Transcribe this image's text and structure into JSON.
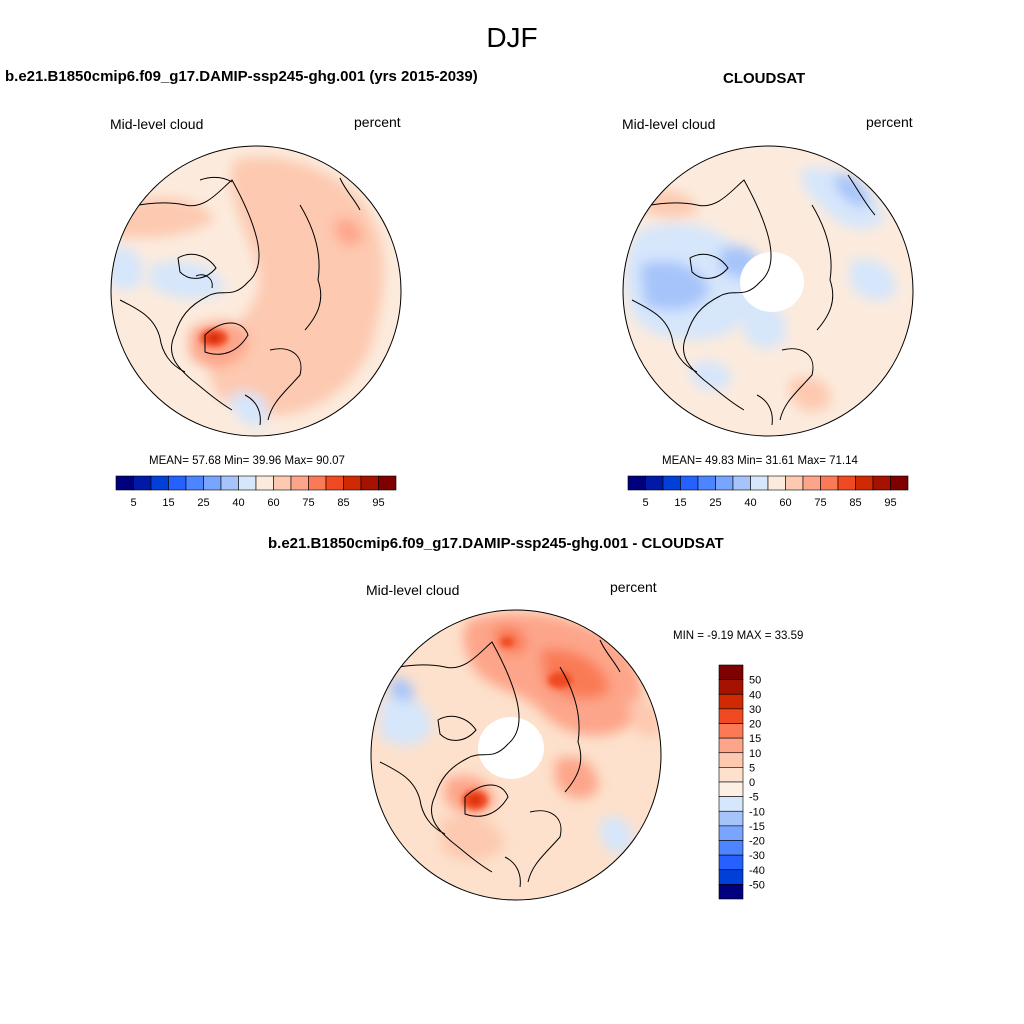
{
  "figure_title": "DJF",
  "panels": [
    {
      "title": "b.e21.B1850cmip6.f09_g17.DAMIP-ssp245-ghg.001 (yrs 2015-2039)",
      "left_label": "Mid-level cloud",
      "right_label": "percent",
      "stats": "MEAN=  57.68  Min=  39.96  Max=  90.07"
    },
    {
      "title": "CLOUDSAT",
      "left_label": "Mid-level cloud",
      "right_label": "percent",
      "stats": "MEAN=  49.83  Min=  31.61  Max=  71.14"
    },
    {
      "title": "b.e21.B1850cmip6.f09_g17.DAMIP-ssp245-ghg.001 - CLOUDSAT",
      "left_label": "Mid-level cloud",
      "right_label": "percent",
      "stats": "MIN =  -9.19 MAX =  33.59"
    }
  ],
  "chart_data": [
    {
      "type": "heatmap",
      "projection": "north-polar-stereographic",
      "variable": "Mid-level cloud",
      "units": "percent",
      "mean": 57.68,
      "min": 39.96,
      "max": 90.07,
      "colorbar": {
        "orientation": "horizontal",
        "levels": [
          5,
          10,
          15,
          20,
          25,
          30,
          40,
          50,
          60,
          70,
          75,
          80,
          85,
          90,
          95
        ],
        "tick_labels": [
          "5",
          "15",
          "25",
          "40",
          "60",
          "75",
          "85",
          "95"
        ],
        "colors": [
          "#00007f",
          "#0019a6",
          "#0040d9",
          "#2660ff",
          "#4c85ff",
          "#7aa5ff",
          "#a6c4fa",
          "#d6e6fb",
          "#fcebdd",
          "#fdc9b0",
          "#fda58a",
          "#fa7a55",
          "#f04a23",
          "#d02a05",
          "#a51200",
          "#7f0000"
        ]
      }
    },
    {
      "type": "heatmap",
      "projection": "north-polar-stereographic",
      "variable": "Mid-level cloud",
      "units": "percent",
      "mean": 49.83,
      "min": 31.61,
      "max": 71.14,
      "missing_pole": true,
      "colorbar": {
        "orientation": "horizontal",
        "levels": [
          5,
          10,
          15,
          20,
          25,
          30,
          40,
          50,
          60,
          70,
          75,
          80,
          85,
          90,
          95
        ],
        "tick_labels": [
          "5",
          "15",
          "25",
          "40",
          "60",
          "75",
          "85",
          "95"
        ],
        "colors": [
          "#00007f",
          "#0019a6",
          "#0040d9",
          "#2660ff",
          "#4c85ff",
          "#7aa5ff",
          "#a6c4fa",
          "#d6e6fb",
          "#fcebdd",
          "#fdc9b0",
          "#fda58a",
          "#fa7a55",
          "#f04a23",
          "#d02a05",
          "#a51200",
          "#7f0000"
        ]
      }
    },
    {
      "type": "heatmap",
      "projection": "north-polar-stereographic",
      "variable": "Mid-level cloud",
      "units": "percent",
      "min": -9.19,
      "max": 33.59,
      "missing_pole": true,
      "colorbar": {
        "orientation": "vertical",
        "tick_labels": [
          "50",
          "40",
          "30",
          "20",
          "15",
          "10",
          "5",
          "0",
          "-5",
          "-10",
          "-15",
          "-20",
          "-30",
          "-40",
          "-50"
        ],
        "colors": [
          "#7f0000",
          "#a51200",
          "#d02a05",
          "#f04a23",
          "#fa7a55",
          "#fda58a",
          "#fdc9b0",
          "#fde1cc",
          "#fcf0e4",
          "#d6e6fb",
          "#a6c4fa",
          "#7aa5ff",
          "#4c85ff",
          "#2660ff",
          "#0040d9",
          "#00007f"
        ]
      }
    }
  ]
}
